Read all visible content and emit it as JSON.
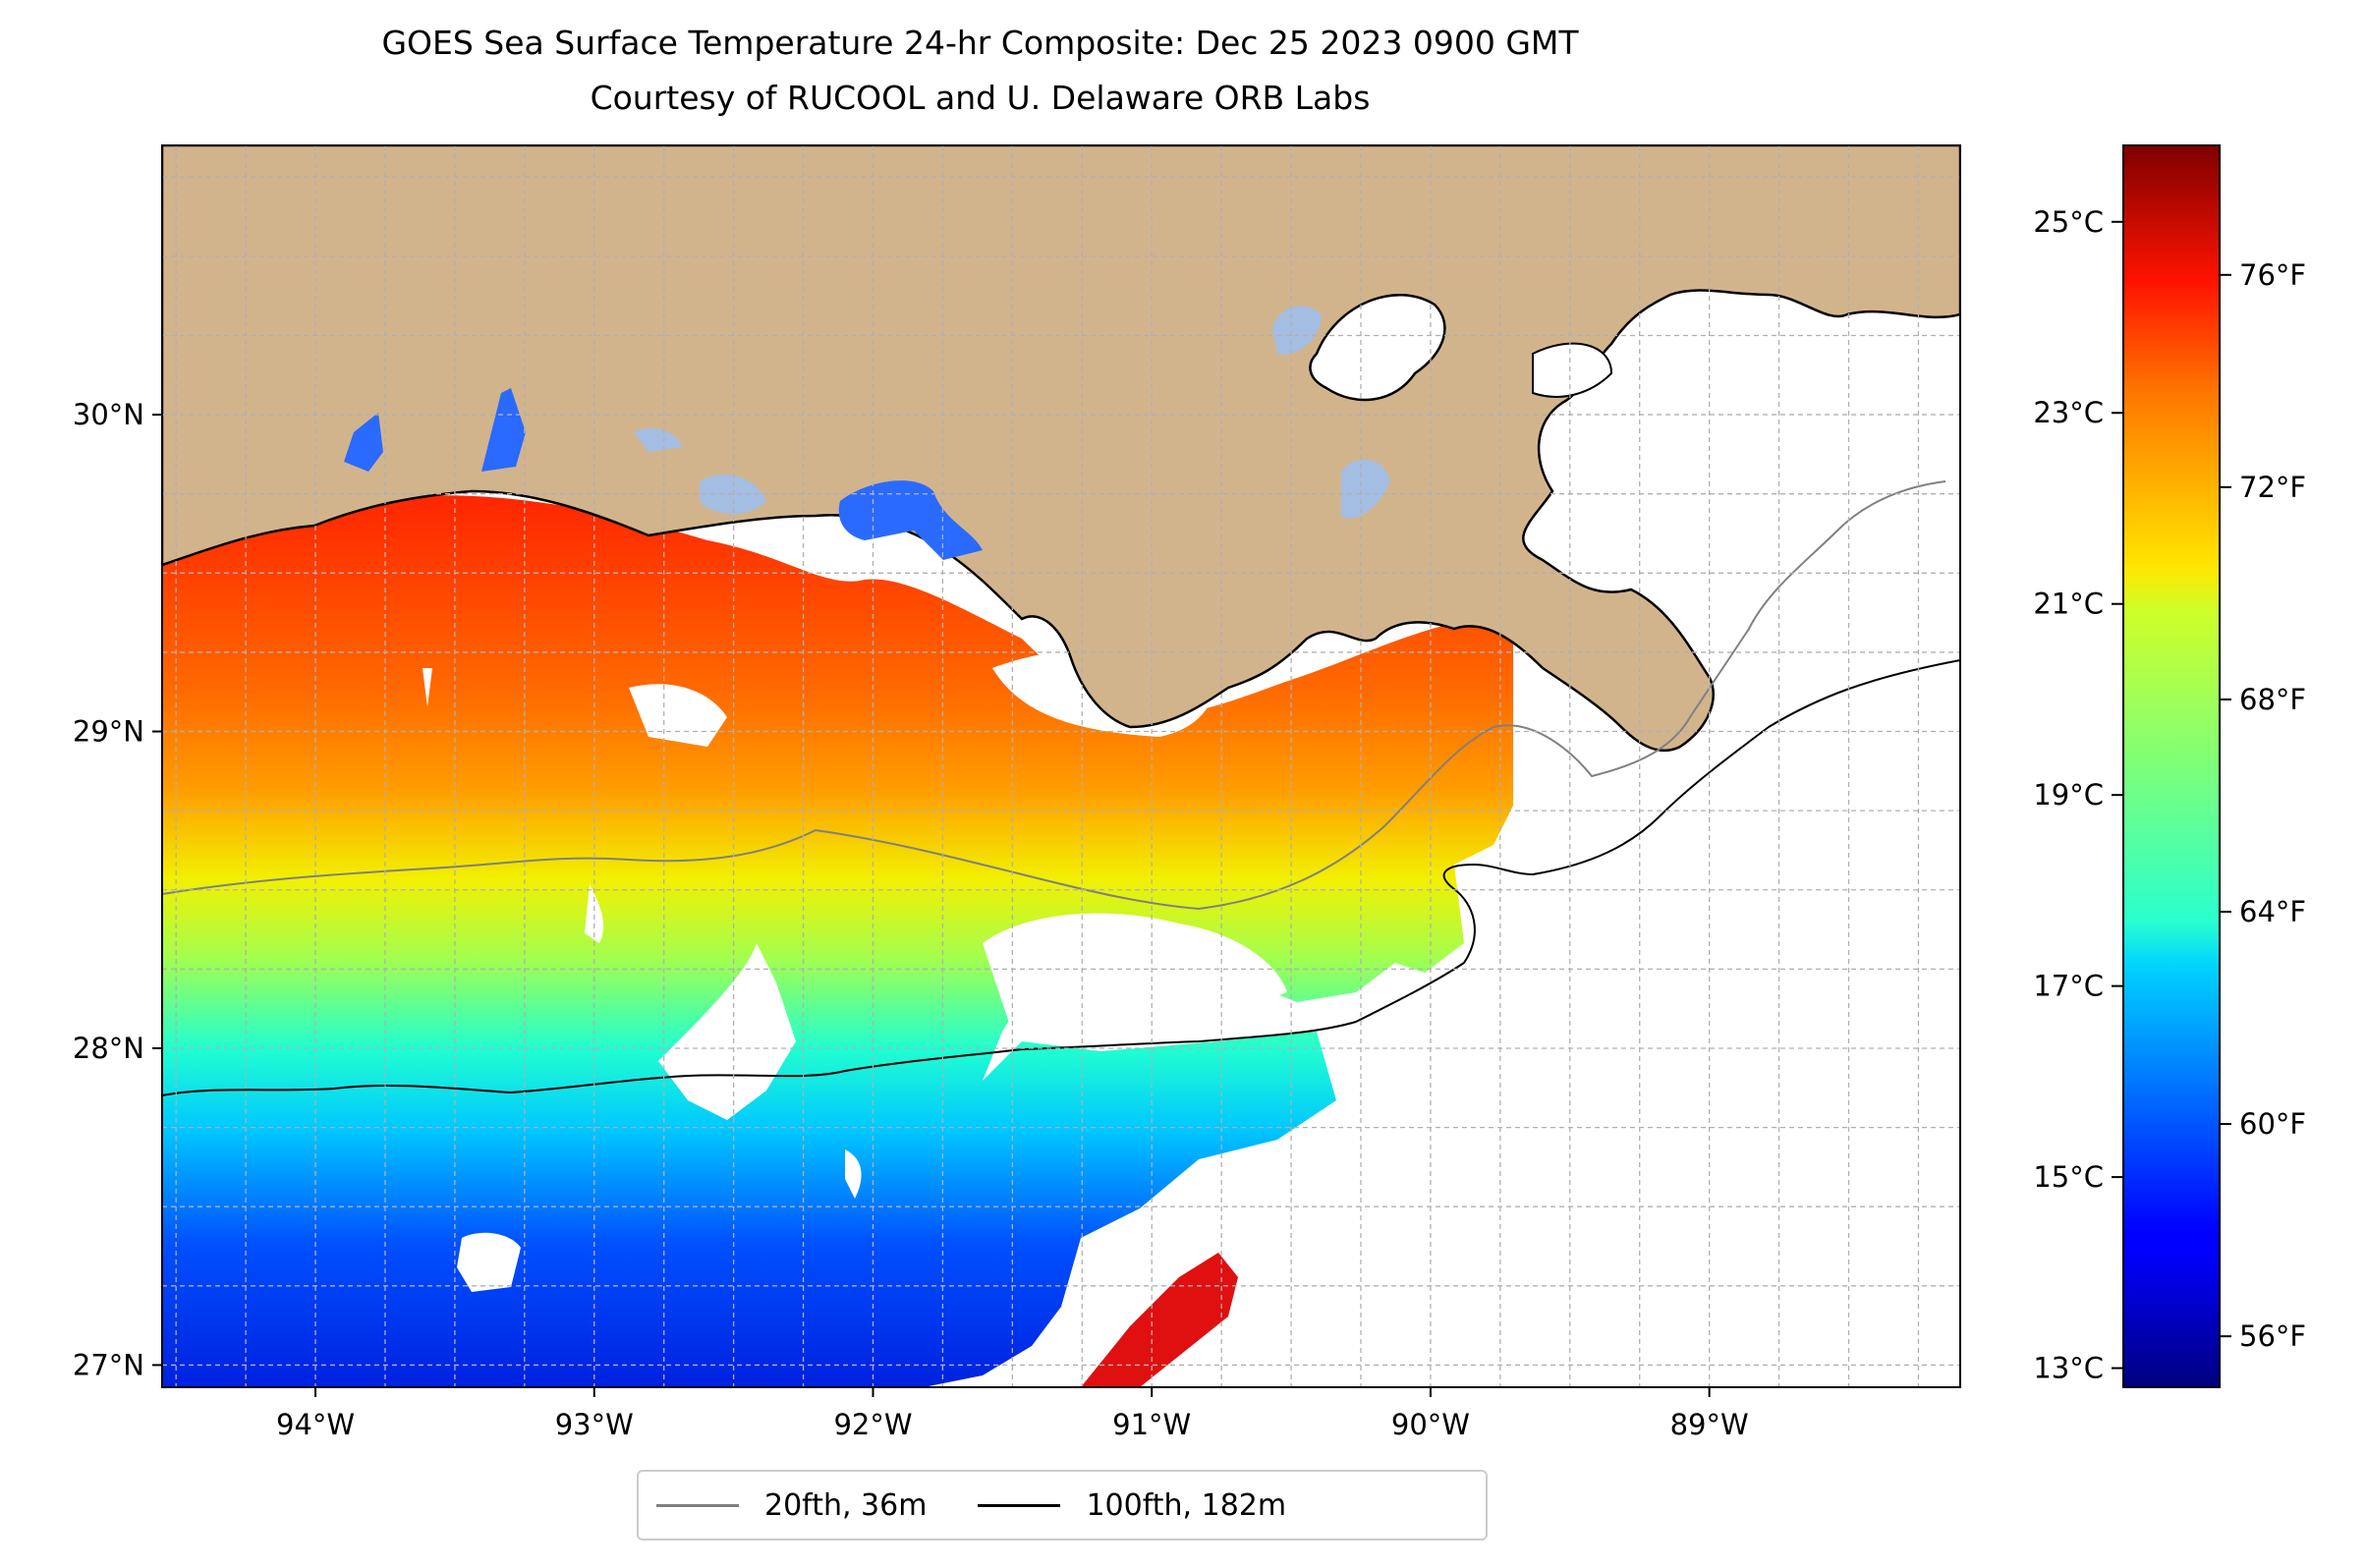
{
  "title": "GOES Sea Surface Temperature 24-hr Composite: Dec 25 2023 0900 GMT",
  "subtitle": "Courtesy of RUCOOL and U. Delaware ORB Labs",
  "map": {
    "extent": {
      "lon": [
        -94.55,
        -88.1
      ],
      "lat": [
        26.93,
        30.85
      ]
    },
    "lon_ticks": [
      {
        "value": -94,
        "label": "94°W"
      },
      {
        "value": -93,
        "label": "93°W"
      },
      {
        "value": -92,
        "label": "92°W"
      },
      {
        "value": -91,
        "label": "91°W"
      },
      {
        "value": -90,
        "label": "90°W"
      },
      {
        "value": -89,
        "label": "89°W"
      }
    ],
    "lat_ticks": [
      {
        "value": 27,
        "label": "27°N"
      },
      {
        "value": 28,
        "label": "28°N"
      },
      {
        "value": 29,
        "label": "29°N"
      },
      {
        "value": 30,
        "label": "30°N"
      }
    ],
    "colors": {
      "land": "#d2b48c",
      "ocean_missing": "#ffffff",
      "lakes": "#a3bde3",
      "grid": "#b0b0b0"
    }
  },
  "colorbar": {
    "colormap": "jet",
    "celsius_range": [
      12.8,
      25.8
    ],
    "celsius_ticks": [
      {
        "value": 13,
        "label": "13°C"
      },
      {
        "value": 15,
        "label": "15°C"
      },
      {
        "value": 17,
        "label": "17°C"
      },
      {
        "value": 19,
        "label": "19°C"
      },
      {
        "value": 21,
        "label": "21°C"
      },
      {
        "value": 23,
        "label": "23°C"
      },
      {
        "value": 25,
        "label": "25°C"
      }
    ],
    "fahrenheit_ticks": [
      {
        "value": 56,
        "label": "56°F"
      },
      {
        "value": 60,
        "label": "60°F"
      },
      {
        "value": 64,
        "label": "64°F"
      },
      {
        "value": 68,
        "label": "68°F"
      },
      {
        "value": 72,
        "label": "72°F"
      },
      {
        "value": 76,
        "label": "76°F"
      }
    ]
  },
  "legend": {
    "items": [
      {
        "label": "20fth, 36m",
        "color": "#808080"
      },
      {
        "label": "100fth, 182m",
        "color": "#000000"
      }
    ]
  }
}
